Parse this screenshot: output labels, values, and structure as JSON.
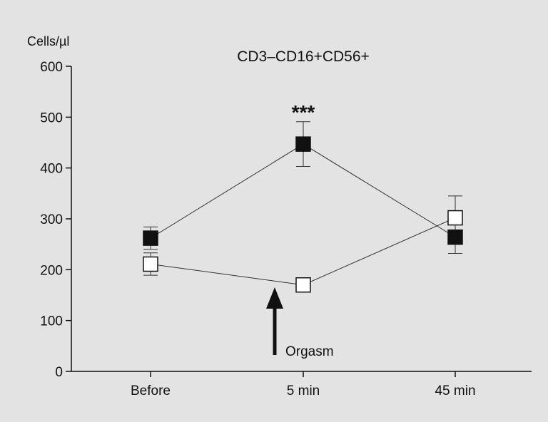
{
  "chart_data": {
    "type": "line",
    "title": "CD3–CD16+CD56+",
    "ylabel": "Cells/µl",
    "xlabel": "",
    "categories": [
      "Before",
      "5 min",
      "45 min"
    ],
    "ylim": [
      0,
      600
    ],
    "yticks": [
      0,
      100,
      200,
      300,
      400,
      500,
      600
    ],
    "grid": false,
    "series": [
      {
        "marker": "filled-square",
        "color": "#111111",
        "values": [
          262,
          447,
          264
        ],
        "error": [
          22,
          44,
          32
        ]
      },
      {
        "marker": "open-square",
        "color": "#ffffff",
        "values": [
          211,
          170,
          302
        ],
        "error": [
          22,
          10,
          43
        ]
      }
    ],
    "annotations": {
      "significance": "***",
      "significance_category": "5 min",
      "arrow_label": "Orgasm"
    }
  }
}
